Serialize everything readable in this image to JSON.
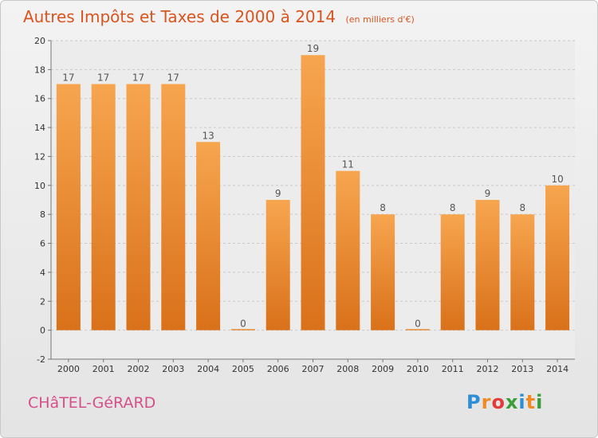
{
  "title": "Autres Impôts et Taxes de 2000 à 2014",
  "unit": "(en milliers d'€)",
  "town": "CHâTEL-GéRARD",
  "logo": {
    "text": "Proxiti",
    "letters": [
      {
        "ch": "P",
        "color": "#2a8fd6"
      },
      {
        "ch": "r",
        "color": "#f08a24"
      },
      {
        "ch": "o",
        "color": "#e23b3b"
      },
      {
        "ch": "x",
        "color": "#3a9d3a"
      },
      {
        "ch": "i",
        "color": "#2a8fd6"
      },
      {
        "ch": "t",
        "color": "#f08a24"
      },
      {
        "ch": "i",
        "color": "#3a9d3a"
      }
    ]
  },
  "colors": {
    "bar_top": "#f7a54f",
    "bar_bottom": "#d9711a",
    "title": "#d9541f",
    "town": "#d64f8a",
    "grid": "#c9c9c9"
  },
  "chart_data": {
    "type": "bar",
    "title": "Autres Impôts et Taxes de 2000 à 2014",
    "xlabel": "",
    "ylabel": "",
    "categories": [
      "2000",
      "2001",
      "2002",
      "2003",
      "2004",
      "2005",
      "2006",
      "2007",
      "2008",
      "2009",
      "2010",
      "2011",
      "2012",
      "2013",
      "2014"
    ],
    "values": [
      17,
      17,
      17,
      17,
      13,
      0,
      9,
      19,
      11,
      8,
      0,
      8,
      9,
      8,
      10
    ],
    "ylim": [
      -2,
      20
    ],
    "yticks": [
      -2,
      0,
      2,
      4,
      6,
      8,
      10,
      12,
      14,
      16,
      18,
      20
    ],
    "grid": "horizontal dashed"
  }
}
